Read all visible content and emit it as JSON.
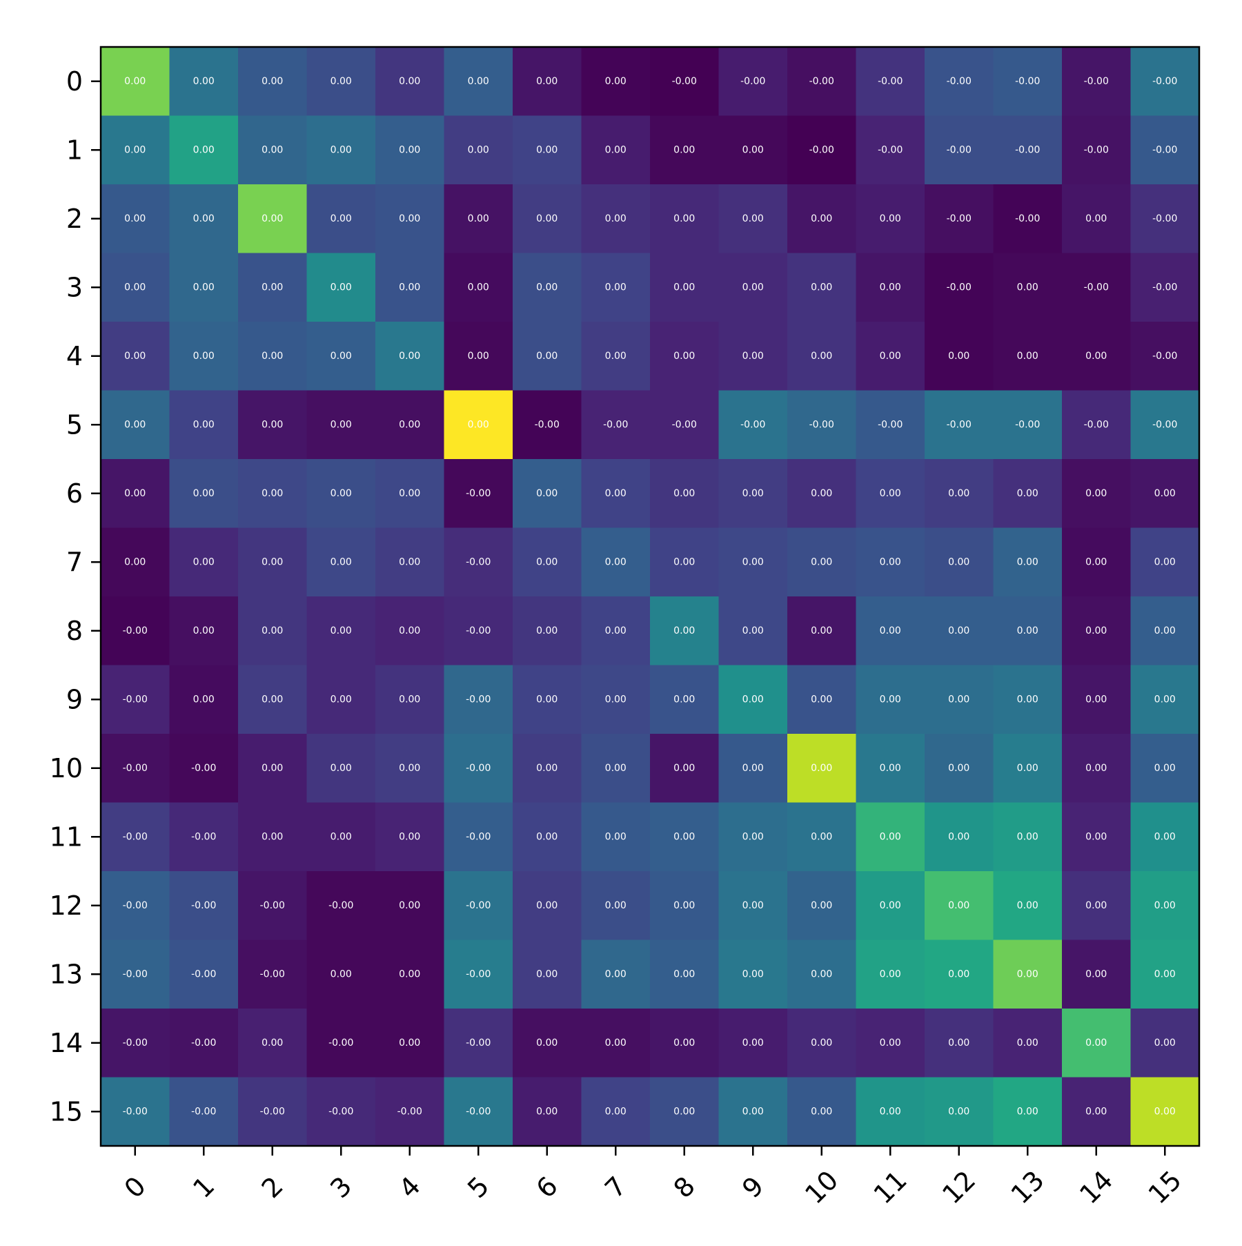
{
  "chart_data": {
    "type": "heatmap",
    "title": "",
    "xlabel": "",
    "ylabel": "",
    "colormap": "viridis",
    "x_categories": [
      "0",
      "1",
      "2",
      "3",
      "4",
      "5",
      "6",
      "7",
      "8",
      "9",
      "10",
      "11",
      "12",
      "13",
      "14",
      "15"
    ],
    "y_categories": [
      "0",
      "1",
      "2",
      "3",
      "4",
      "5",
      "6",
      "7",
      "8",
      "9",
      "10",
      "11",
      "12",
      "13",
      "14",
      "15"
    ],
    "color_intensity": [
      [
        0.8,
        0.38,
        0.28,
        0.24,
        0.16,
        0.3,
        0.06,
        0.01,
        0.0,
        0.08,
        0.04,
        0.15,
        0.26,
        0.28,
        0.06,
        0.38
      ],
      [
        0.4,
        0.58,
        0.33,
        0.36,
        0.3,
        0.18,
        0.2,
        0.08,
        0.02,
        0.02,
        0.0,
        0.1,
        0.24,
        0.24,
        0.05,
        0.28
      ],
      [
        0.28,
        0.34,
        0.8,
        0.24,
        0.26,
        0.05,
        0.18,
        0.14,
        0.12,
        0.14,
        0.06,
        0.08,
        0.04,
        0.01,
        0.06,
        0.14
      ],
      [
        0.26,
        0.34,
        0.26,
        0.48,
        0.26,
        0.03,
        0.24,
        0.2,
        0.12,
        0.12,
        0.15,
        0.06,
        0.01,
        0.02,
        0.02,
        0.09
      ],
      [
        0.18,
        0.32,
        0.28,
        0.3,
        0.4,
        0.02,
        0.24,
        0.18,
        0.1,
        0.12,
        0.15,
        0.08,
        0.01,
        0.02,
        0.02,
        0.04
      ],
      [
        0.34,
        0.2,
        0.06,
        0.04,
        0.04,
        1.0,
        0.01,
        0.1,
        0.1,
        0.38,
        0.34,
        0.28,
        0.38,
        0.38,
        0.12,
        0.4
      ],
      [
        0.06,
        0.24,
        0.22,
        0.24,
        0.22,
        0.02,
        0.3,
        0.2,
        0.16,
        0.18,
        0.14,
        0.2,
        0.18,
        0.14,
        0.04,
        0.06
      ],
      [
        0.02,
        0.12,
        0.16,
        0.22,
        0.18,
        0.13,
        0.2,
        0.3,
        0.2,
        0.22,
        0.24,
        0.26,
        0.24,
        0.32,
        0.03,
        0.2
      ],
      [
        0.01,
        0.04,
        0.16,
        0.12,
        0.1,
        0.12,
        0.16,
        0.2,
        0.44,
        0.22,
        0.06,
        0.3,
        0.3,
        0.3,
        0.04,
        0.3
      ],
      [
        0.1,
        0.03,
        0.18,
        0.12,
        0.15,
        0.34,
        0.2,
        0.22,
        0.26,
        0.5,
        0.26,
        0.36,
        0.36,
        0.38,
        0.06,
        0.4
      ],
      [
        0.04,
        0.02,
        0.08,
        0.16,
        0.18,
        0.36,
        0.18,
        0.24,
        0.06,
        0.28,
        0.9,
        0.4,
        0.34,
        0.42,
        0.08,
        0.3
      ],
      [
        0.18,
        0.12,
        0.08,
        0.08,
        0.1,
        0.3,
        0.2,
        0.28,
        0.3,
        0.36,
        0.38,
        0.65,
        0.52,
        0.55,
        0.1,
        0.5
      ],
      [
        0.3,
        0.24,
        0.06,
        0.02,
        0.02,
        0.38,
        0.18,
        0.24,
        0.28,
        0.38,
        0.32,
        0.55,
        0.7,
        0.6,
        0.14,
        0.56
      ],
      [
        0.32,
        0.26,
        0.04,
        0.02,
        0.02,
        0.42,
        0.18,
        0.34,
        0.3,
        0.4,
        0.36,
        0.58,
        0.6,
        0.78,
        0.06,
        0.58
      ],
      [
        0.06,
        0.05,
        0.09,
        0.02,
        0.02,
        0.14,
        0.04,
        0.04,
        0.06,
        0.08,
        0.12,
        0.1,
        0.14,
        0.1,
        0.7,
        0.14
      ],
      [
        0.38,
        0.26,
        0.16,
        0.12,
        0.1,
        0.4,
        0.08,
        0.2,
        0.24,
        0.38,
        0.28,
        0.52,
        0.54,
        0.6,
        0.1,
        0.9
      ]
    ],
    "annotations": [
      [
        "0.00",
        "0.00",
        "0.00",
        "0.00",
        "0.00",
        "0.00",
        "0.00",
        "0.00",
        "-0.00",
        "-0.00",
        "-0.00",
        "-0.00",
        "-0.00",
        "-0.00",
        "-0.00",
        "-0.00"
      ],
      [
        "0.00",
        "0.00",
        "0.00",
        "0.00",
        "0.00",
        "0.00",
        "0.00",
        "0.00",
        "0.00",
        "0.00",
        "-0.00",
        "-0.00",
        "-0.00",
        "-0.00",
        "-0.00",
        "-0.00"
      ],
      [
        "0.00",
        "0.00",
        "0.00",
        "0.00",
        "0.00",
        "0.00",
        "0.00",
        "0.00",
        "0.00",
        "0.00",
        "0.00",
        "0.00",
        "-0.00",
        "-0.00",
        "0.00",
        "-0.00"
      ],
      [
        "0.00",
        "0.00",
        "0.00",
        "0.00",
        "0.00",
        "0.00",
        "0.00",
        "0.00",
        "0.00",
        "0.00",
        "0.00",
        "0.00",
        "-0.00",
        "0.00",
        "-0.00",
        "-0.00"
      ],
      [
        "0.00",
        "0.00",
        "0.00",
        "0.00",
        "0.00",
        "0.00",
        "0.00",
        "0.00",
        "0.00",
        "0.00",
        "0.00",
        "0.00",
        "0.00",
        "0.00",
        "0.00",
        "-0.00"
      ],
      [
        "0.00",
        "0.00",
        "0.00",
        "0.00",
        "0.00",
        "0.00",
        "-0.00",
        "-0.00",
        "-0.00",
        "-0.00",
        "-0.00",
        "-0.00",
        "-0.00",
        "-0.00",
        "-0.00",
        "-0.00"
      ],
      [
        "0.00",
        "0.00",
        "0.00",
        "0.00",
        "0.00",
        "-0.00",
        "0.00",
        "0.00",
        "0.00",
        "0.00",
        "0.00",
        "0.00",
        "0.00",
        "0.00",
        "0.00",
        "0.00"
      ],
      [
        "0.00",
        "0.00",
        "0.00",
        "0.00",
        "0.00",
        "-0.00",
        "0.00",
        "0.00",
        "0.00",
        "0.00",
        "0.00",
        "0.00",
        "0.00",
        "0.00",
        "0.00",
        "0.00"
      ],
      [
        "-0.00",
        "0.00",
        "0.00",
        "0.00",
        "0.00",
        "-0.00",
        "0.00",
        "0.00",
        "0.00",
        "0.00",
        "0.00",
        "0.00",
        "0.00",
        "0.00",
        "0.00",
        "0.00"
      ],
      [
        "-0.00",
        "0.00",
        "0.00",
        "0.00",
        "0.00",
        "-0.00",
        "0.00",
        "0.00",
        "0.00",
        "0.00",
        "0.00",
        "0.00",
        "0.00",
        "0.00",
        "0.00",
        "0.00"
      ],
      [
        "-0.00",
        "-0.00",
        "0.00",
        "0.00",
        "0.00",
        "-0.00",
        "0.00",
        "0.00",
        "0.00",
        "0.00",
        "0.00",
        "0.00",
        "0.00",
        "0.00",
        "0.00",
        "0.00"
      ],
      [
        "-0.00",
        "-0.00",
        "0.00",
        "0.00",
        "0.00",
        "-0.00",
        "0.00",
        "0.00",
        "0.00",
        "0.00",
        "0.00",
        "0.00",
        "0.00",
        "0.00",
        "0.00",
        "0.00"
      ],
      [
        "-0.00",
        "-0.00",
        "-0.00",
        "-0.00",
        "0.00",
        "-0.00",
        "0.00",
        "0.00",
        "0.00",
        "0.00",
        "0.00",
        "0.00",
        "0.00",
        "0.00",
        "0.00",
        "0.00"
      ],
      [
        "-0.00",
        "-0.00",
        "-0.00",
        "0.00",
        "0.00",
        "-0.00",
        "0.00",
        "0.00",
        "0.00",
        "0.00",
        "0.00",
        "0.00",
        "0.00",
        "0.00",
        "0.00",
        "0.00"
      ],
      [
        "-0.00",
        "-0.00",
        "0.00",
        "-0.00",
        "0.00",
        "-0.00",
        "0.00",
        "0.00",
        "0.00",
        "0.00",
        "0.00",
        "0.00",
        "0.00",
        "0.00",
        "0.00",
        "0.00"
      ],
      [
        "-0.00",
        "-0.00",
        "-0.00",
        "-0.00",
        "-0.00",
        "-0.00",
        "0.00",
        "0.00",
        "0.00",
        "0.00",
        "0.00",
        "0.00",
        "0.00",
        "0.00",
        "0.00",
        "0.00"
      ]
    ],
    "x_tick_rotation_deg": -45,
    "grid": false,
    "legend": "none"
  }
}
